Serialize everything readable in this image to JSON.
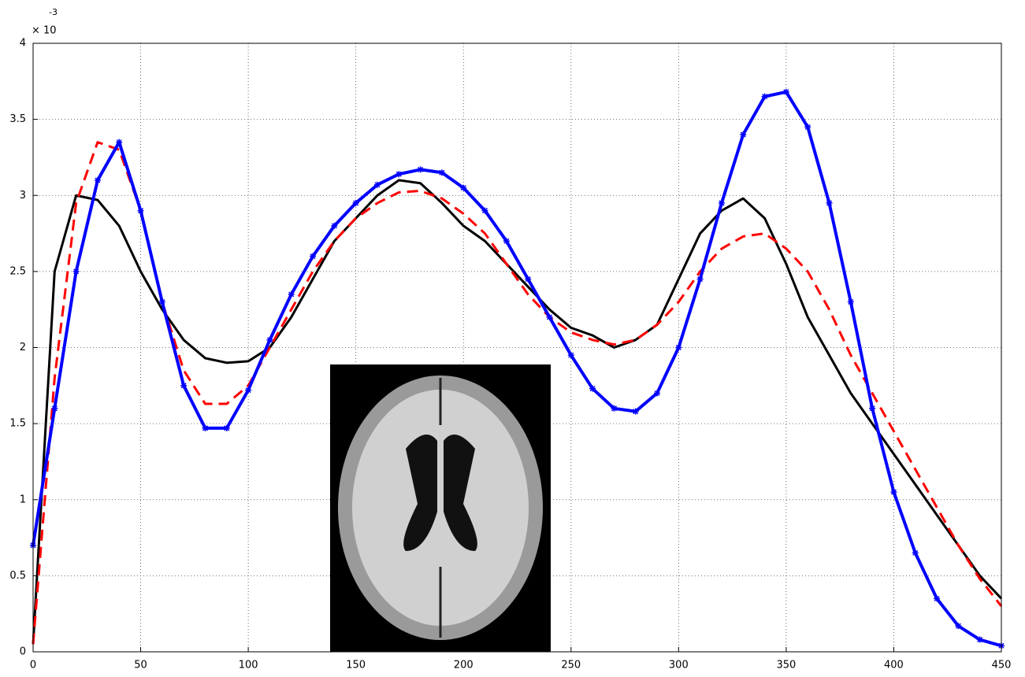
{
  "chart_data": {
    "type": "line",
    "y_multiplier": "× 10",
    "y_exponent": "-3",
    "x": [
      0,
      10,
      20,
      30,
      40,
      50,
      60,
      70,
      80,
      90,
      100,
      110,
      120,
      130,
      140,
      150,
      160,
      170,
      180,
      190,
      200,
      210,
      220,
      230,
      240,
      250,
      260,
      270,
      280,
      290,
      300,
      310,
      320,
      330,
      340,
      350,
      360,
      370,
      380,
      390,
      400,
      410,
      420,
      430,
      440,
      450
    ],
    "series": [
      {
        "color": "#000000",
        "dash": "solid",
        "marker": "none",
        "values": [
          0.05,
          2.5,
          3.0,
          2.97,
          2.8,
          2.5,
          2.25,
          2.05,
          1.93,
          1.9,
          1.91,
          2.0,
          2.2,
          2.45,
          2.7,
          2.85,
          3.0,
          3.1,
          3.08,
          2.95,
          2.8,
          2.7,
          2.55,
          2.4,
          2.25,
          2.13,
          2.08,
          2.0,
          2.05,
          2.15,
          2.45,
          2.75,
          2.9,
          2.98,
          2.85,
          2.55,
          2.2,
          1.95,
          1.7,
          1.5,
          1.3,
          1.1,
          0.9,
          0.7,
          0.5,
          0.35
        ]
      },
      {
        "color": "#ff0000",
        "dash": "dashed",
        "marker": "none",
        "values": [
          0.05,
          1.8,
          2.95,
          3.35,
          3.3,
          2.9,
          2.3,
          1.85,
          1.63,
          1.63,
          1.75,
          2.0,
          2.25,
          2.5,
          2.7,
          2.85,
          2.95,
          3.02,
          3.03,
          2.98,
          2.88,
          2.75,
          2.55,
          2.35,
          2.2,
          2.1,
          2.05,
          2.02,
          2.05,
          2.15,
          2.3,
          2.5,
          2.65,
          2.73,
          2.75,
          2.65,
          2.5,
          2.25,
          1.95,
          1.7,
          1.45,
          1.2,
          0.95,
          0.7,
          0.48,
          0.3
        ]
      },
      {
        "color": "#0000ff",
        "dash": "solid",
        "marker": "star",
        "values": [
          0.7,
          1.6,
          2.5,
          3.1,
          3.35,
          2.9,
          2.3,
          1.75,
          1.47,
          1.47,
          1.72,
          2.05,
          2.35,
          2.6,
          2.8,
          2.95,
          3.07,
          3.14,
          3.17,
          3.15,
          3.05,
          2.9,
          2.7,
          2.45,
          2.2,
          1.95,
          1.73,
          1.6,
          1.58,
          1.7,
          2.0,
          2.45,
          2.95,
          3.4,
          3.65,
          3.68,
          3.45,
          2.95,
          2.3,
          1.6,
          1.05,
          0.65,
          0.35,
          0.17,
          0.08,
          0.04
        ]
      }
    ],
    "xlim": [
      0,
      450
    ],
    "xticks": [
      0,
      50,
      100,
      150,
      200,
      250,
      300,
      350,
      400,
      450
    ],
    "ylim": [
      0,
      4
    ],
    "yticks": [
      0,
      0.5,
      1,
      1.5,
      2,
      2.5,
      3,
      3.5,
      4
    ],
    "grid": true
  }
}
